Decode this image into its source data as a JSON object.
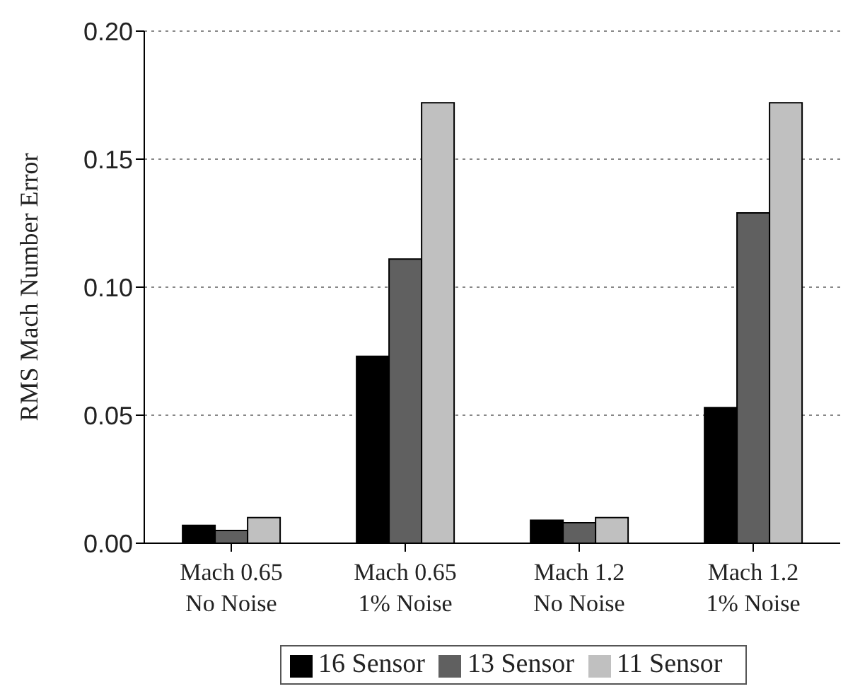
{
  "chart_data": {
    "type": "bar",
    "ylabel": "RMS Mach Number Error",
    "categories": [
      "Mach 0.65\nNo Noise",
      "Mach 0.65\n1% Noise",
      "Mach 1.2\nNo Noise",
      "Mach 1.2\n1% Noise"
    ],
    "series": [
      {
        "name": "16 Sensor",
        "color": "#000000",
        "values": [
          0.007,
          0.073,
          0.009,
          0.053
        ]
      },
      {
        "name": "13 Sensor",
        "color": "#606060",
        "values": [
          0.005,
          0.111,
          0.008,
          0.129
        ]
      },
      {
        "name": "11 Sensor",
        "color": "#c0c0c0",
        "values": [
          0.01,
          0.172,
          0.01,
          0.172
        ]
      }
    ],
    "ylim": [
      0,
      0.2
    ],
    "yticks": [
      {
        "value": 0,
        "label": "0.00"
      },
      {
        "value": 0.05,
        "label": "0.05"
      },
      {
        "value": 0.1,
        "label": "0.10"
      },
      {
        "value": 0.15,
        "label": "0.15"
      },
      {
        "value": 0.2,
        "label": "0.20"
      }
    ],
    "grid": "y",
    "legend": "bottom"
  }
}
